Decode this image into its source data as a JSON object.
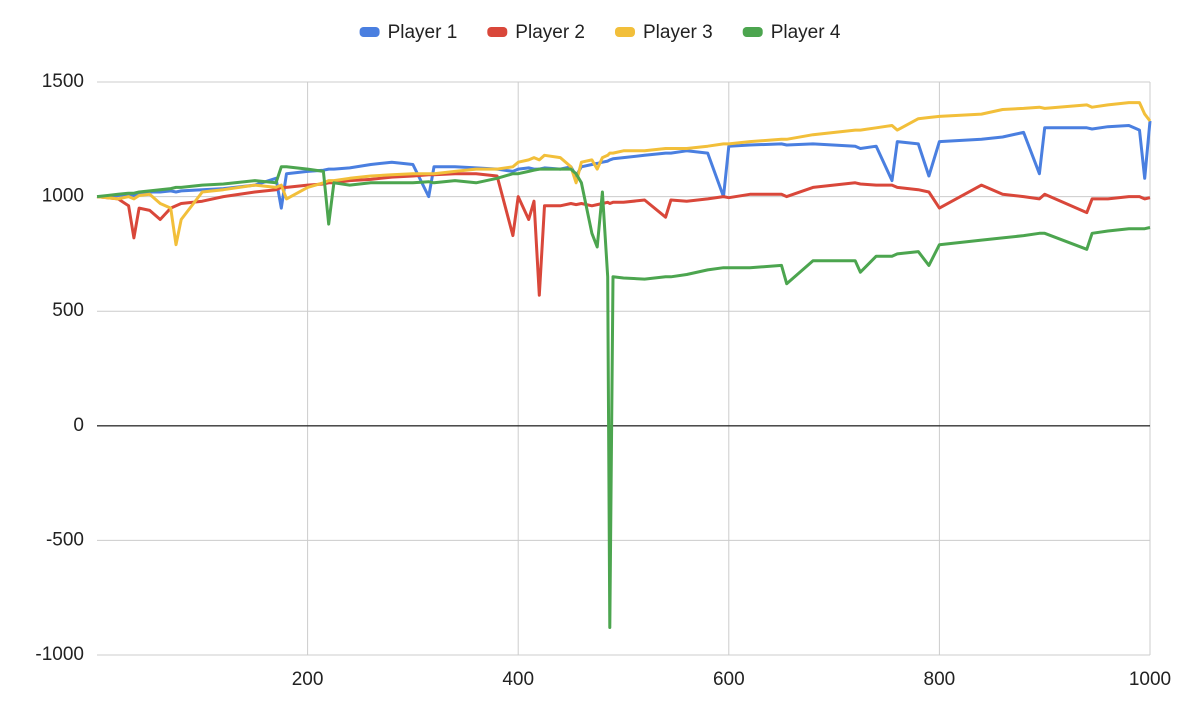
{
  "chart_data": {
    "type": "line",
    "legend": "top",
    "grid": true,
    "xlim": [
      0,
      1000
    ],
    "xticks": [
      200,
      400,
      600,
      800,
      1000
    ],
    "ylim": [
      -1000,
      1500
    ],
    "yticks": [
      -1000,
      -500,
      0,
      500,
      1000,
      1500
    ],
    "x": [
      0,
      10,
      20,
      30,
      35,
      40,
      50,
      60,
      70,
      75,
      80,
      100,
      120,
      150,
      170,
      175,
      180,
      200,
      215,
      220,
      225,
      240,
      260,
      280,
      300,
      315,
      320,
      340,
      360,
      380,
      395,
      400,
      410,
      415,
      420,
      425,
      440,
      450,
      455,
      460,
      470,
      475,
      480,
      485,
      487,
      490,
      500,
      520,
      540,
      545,
      560,
      580,
      595,
      600,
      620,
      650,
      655,
      680,
      720,
      725,
      740,
      755,
      760,
      780,
      790,
      800,
      840,
      860,
      880,
      895,
      900,
      940,
      945,
      960,
      980,
      990,
      995,
      1000
    ],
    "series": [
      {
        "name": "Player 1",
        "color": "#4a7fe0",
        "values": [
          1000,
          1000,
          1005,
          1010,
          1005,
          1015,
          1020,
          1020,
          1025,
          1020,
          1025,
          1030,
          1035,
          1050,
          1080,
          950,
          1100,
          1110,
          1115,
          1120,
          1120,
          1125,
          1140,
          1150,
          1140,
          1000,
          1130,
          1130,
          1125,
          1120,
          1110,
          1120,
          1125,
          1120,
          1120,
          1125,
          1120,
          1130,
          1090,
          1130,
          1140,
          1145,
          1150,
          1155,
          1160,
          1165,
          1170,
          1180,
          1190,
          1190,
          1200,
          1190,
          1000,
          1220,
          1225,
          1230,
          1225,
          1230,
          1220,
          1210,
          1220,
          1070,
          1240,
          1230,
          1090,
          1240,
          1250,
          1260,
          1280,
          1100,
          1300,
          1300,
          1295,
          1305,
          1310,
          1290,
          1080,
          1330
        ]
      },
      {
        "name": "Player 2",
        "color": "#d9473a",
        "values": [
          1000,
          995,
          990,
          960,
          820,
          950,
          940,
          900,
          950,
          960,
          970,
          980,
          1000,
          1020,
          1030,
          1040,
          1040,
          1050,
          1055,
          1060,
          1060,
          1070,
          1075,
          1085,
          1090,
          1095,
          1095,
          1100,
          1100,
          1090,
          830,
          1000,
          900,
          980,
          570,
          960,
          960,
          970,
          965,
          970,
          960,
          965,
          970,
          975,
          970,
          975,
          975,
          985,
          910,
          985,
          980,
          990,
          1000,
          995,
          1010,
          1010,
          1000,
          1040,
          1060,
          1055,
          1050,
          1050,
          1040,
          1030,
          1020,
          950,
          1050,
          1010,
          1000,
          990,
          1010,
          930,
          990,
          990,
          1000,
          1000,
          990,
          995
        ]
      },
      {
        "name": "Player 3",
        "color": "#f2bf3a",
        "values": [
          1000,
          995,
          990,
          1000,
          990,
          1005,
          1010,
          970,
          950,
          790,
          900,
          1020,
          1030,
          1050,
          1040,
          1050,
          990,
          1040,
          1060,
          1070,
          1070,
          1080,
          1090,
          1095,
          1100,
          1100,
          1100,
          1110,
          1120,
          1120,
          1130,
          1150,
          1160,
          1170,
          1160,
          1180,
          1170,
          1130,
          1060,
          1150,
          1160,
          1120,
          1170,
          1180,
          1190,
          1190,
          1200,
          1200,
          1210,
          1210,
          1210,
          1220,
          1230,
          1230,
          1240,
          1250,
          1250,
          1270,
          1290,
          1290,
          1300,
          1310,
          1290,
          1340,
          1345,
          1350,
          1360,
          1380,
          1385,
          1390,
          1385,
          1400,
          1390,
          1400,
          1410,
          1410,
          1360,
          1330
        ]
      },
      {
        "name": "Player 4",
        "color": "#4ca54f",
        "values": [
          1000,
          1005,
          1010,
          1015,
          1015,
          1020,
          1025,
          1030,
          1035,
          1040,
          1040,
          1050,
          1055,
          1070,
          1060,
          1130,
          1130,
          1120,
          1110,
          880,
          1060,
          1050,
          1060,
          1060,
          1060,
          1065,
          1060,
          1070,
          1060,
          1080,
          1100,
          1100,
          1110,
          1115,
          1120,
          1120,
          1120,
          1120,
          1100,
          1060,
          840,
          780,
          1020,
          650,
          -880,
          650,
          645,
          640,
          650,
          650,
          660,
          680,
          690,
          690,
          690,
          700,
          620,
          720,
          720,
          670,
          740,
          740,
          750,
          760,
          700,
          790,
          810,
          820,
          830,
          840,
          840,
          770,
          840,
          850,
          860,
          860,
          860,
          865
        ]
      }
    ]
  }
}
